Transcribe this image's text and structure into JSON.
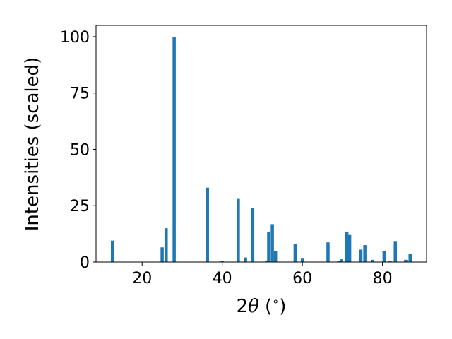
{
  "chart_data": {
    "type": "bar",
    "title": "",
    "xlabel_prefix": "2",
    "xlabel_var": "θ",
    "xlabel_suffix": " (",
    "xlabel_sup": "∘",
    "xlabel_end": ")",
    "ylabel": "Intensities (scaled)",
    "xlim": [
      8.5,
      91.0
    ],
    "ylim": [
      0,
      105
    ],
    "xticks": [
      20,
      40,
      60,
      80
    ],
    "yticks": [
      0,
      25,
      50,
      75,
      100
    ],
    "grid": false,
    "bar_color": "#1f77b4",
    "bar_width": 0.8,
    "x": [
      12.6,
      25.0,
      26.0,
      28.0,
      36.3,
      40.0,
      44.0,
      45.8,
      47.6,
      51.1,
      51.6,
      52.5,
      53.3,
      58.2,
      60.0,
      66.4,
      69.1,
      69.8,
      71.1,
      71.8,
      74.6,
      75.6,
      77.5,
      80.4,
      81.9,
      83.2,
      85.8,
      86.9
    ],
    "values": [
      9.5,
      6.5,
      15.0,
      100.0,
      33.0,
      0.5,
      28.0,
      2.0,
      24.0,
      0.7,
      13.5,
      16.8,
      5.0,
      8.0,
      1.5,
      8.7,
      0.4,
      1.2,
      13.5,
      12.0,
      5.5,
      7.5,
      1.0,
      4.7,
      0.5,
      9.3,
      1.0,
      3.5
    ]
  }
}
